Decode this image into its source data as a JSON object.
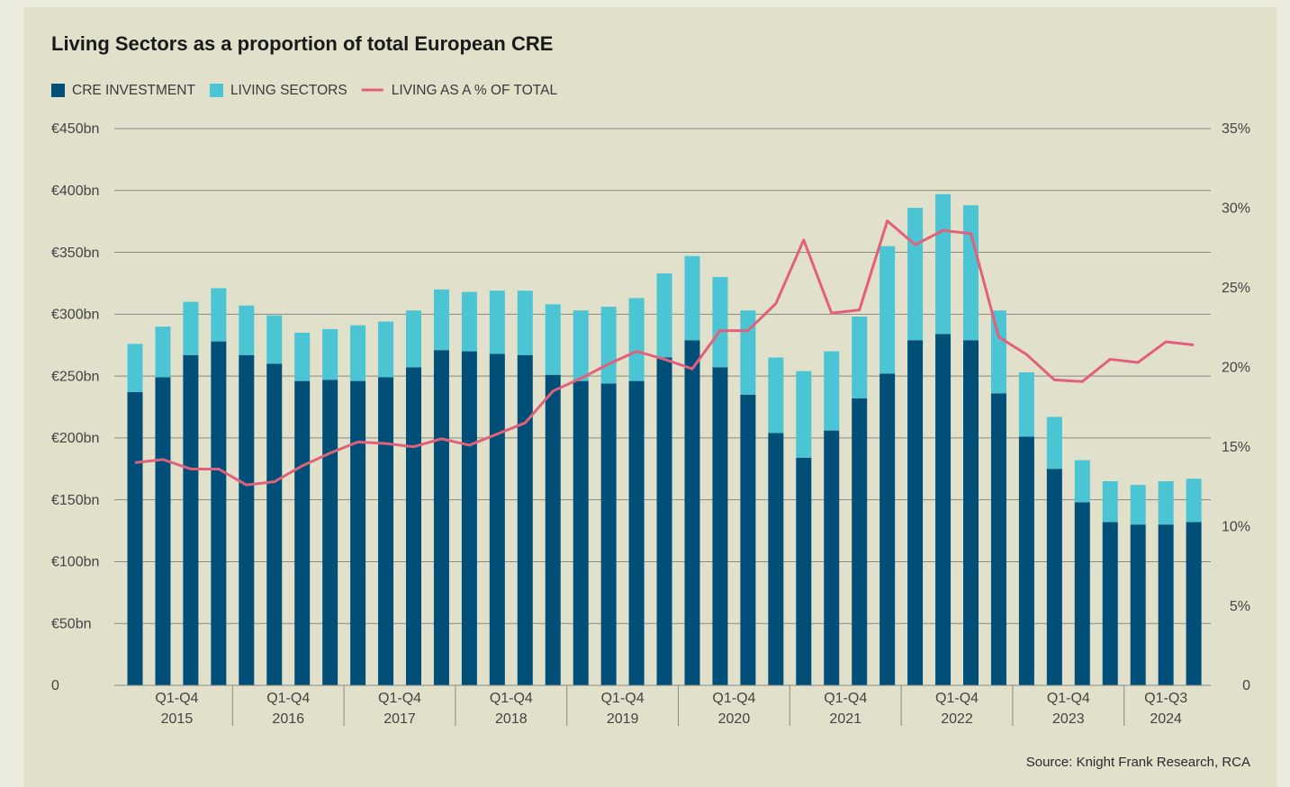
{
  "chart_data": {
    "type": "bar",
    "stacked": true,
    "title": "Living Sectors as a proportion of total European CRE",
    "source": "Source: Knight Frank Research, RCA",
    "categories": [
      null,
      null,
      null,
      null,
      null,
      null,
      null,
      null,
      null,
      null,
      null,
      null,
      null,
      null,
      null,
      null,
      null,
      null,
      null,
      null,
      null,
      null,
      null,
      null,
      null,
      null,
      null,
      null,
      null,
      null,
      null,
      null,
      null,
      null,
      null,
      null,
      null,
      null,
      null
    ],
    "x_groups": [
      {
        "period": "Q1-Q4",
        "year": "2015"
      },
      {
        "period": "Q1-Q4",
        "year": "2016"
      },
      {
        "period": "Q1-Q4",
        "year": "2017"
      },
      {
        "period": "Q1-Q4",
        "year": "2018"
      },
      {
        "period": "Q1-Q4",
        "year": "2019"
      },
      {
        "period": "Q1-Q4",
        "year": "2020"
      },
      {
        "period": "Q1-Q4",
        "year": "2021"
      },
      {
        "period": "Q1-Q4",
        "year": "2022"
      },
      {
        "period": "Q1-Q4",
        "year": "2023"
      },
      {
        "period": "Q1-Q3",
        "year": "2024"
      }
    ],
    "series": [
      {
        "name": "CRE INVESTMENT",
        "color": "#004f79",
        "values": [
          237,
          249,
          267,
          278,
          267,
          260,
          246,
          247,
          246,
          249,
          257,
          271,
          270,
          268,
          267,
          251,
          246,
          244,
          246,
          265,
          279,
          257,
          235,
          204,
          184,
          206,
          232,
          252,
          279,
          284,
          279,
          236,
          201,
          175,
          148,
          132,
          130,
          130,
          132
        ]
      },
      {
        "name": "LIVING SECTORS",
        "color": "#4bc4d4",
        "values": [
          39,
          41,
          43,
          43,
          40,
          39,
          39,
          41,
          45,
          45,
          46,
          49,
          48,
          51,
          52,
          57,
          57,
          62,
          67,
          68,
          68,
          73,
          68,
          61,
          70,
          64,
          66,
          103,
          107,
          113,
          109,
          67,
          52,
          42,
          34,
          33,
          32,
          35,
          35
        ]
      },
      {
        "name": "LIVING AS A % OF TOTAL",
        "color": "#e2607a",
        "type": "line",
        "axis": "y2",
        "values": [
          14.0,
          14.2,
          13.6,
          13.6,
          12.6,
          12.8,
          13.8,
          14.6,
          15.3,
          15.2,
          15.0,
          15.5,
          15.1,
          15.8,
          16.5,
          18.5,
          19.3,
          20.2,
          21.0,
          20.5,
          19.9,
          22.3,
          22.3,
          24.0,
          28.0,
          23.4,
          23.6,
          29.2,
          27.7,
          28.6,
          28.4,
          21.9,
          20.8,
          19.2,
          19.1,
          20.5,
          20.3,
          21.6,
          21.4
        ]
      }
    ],
    "ylim": [
      0,
      450
    ],
    "yticks": [
      0,
      {
        "value": 50,
        "label": "€50bn"
      },
      {
        "value": 100,
        "label": "€100bn"
      },
      {
        "value": 150,
        "label": "€150bn"
      },
      {
        "value": 200,
        "label": "€200bn"
      },
      {
        "value": 250,
        "label": "€250bn"
      },
      {
        "value": 300,
        "label": "€300bn"
      },
      {
        "value": 350,
        "label": "€350bn"
      },
      {
        "value": 400,
        "label": "€400bn"
      },
      {
        "value": 450,
        "label": "€450bn"
      }
    ],
    "y2lim": [
      0,
      35
    ],
    "y2ticks": [
      0,
      {
        "value": 5,
        "label": "5%"
      },
      {
        "value": 10,
        "label": "10%"
      },
      {
        "value": 15,
        "label": "15%"
      },
      {
        "value": 20,
        "label": "20%"
      },
      {
        "value": 25,
        "label": "25%"
      },
      {
        "value": 30,
        "label": "30%"
      },
      {
        "value": 35,
        "label": "35%"
      }
    ],
    "grid": true,
    "legend": "top-left"
  }
}
